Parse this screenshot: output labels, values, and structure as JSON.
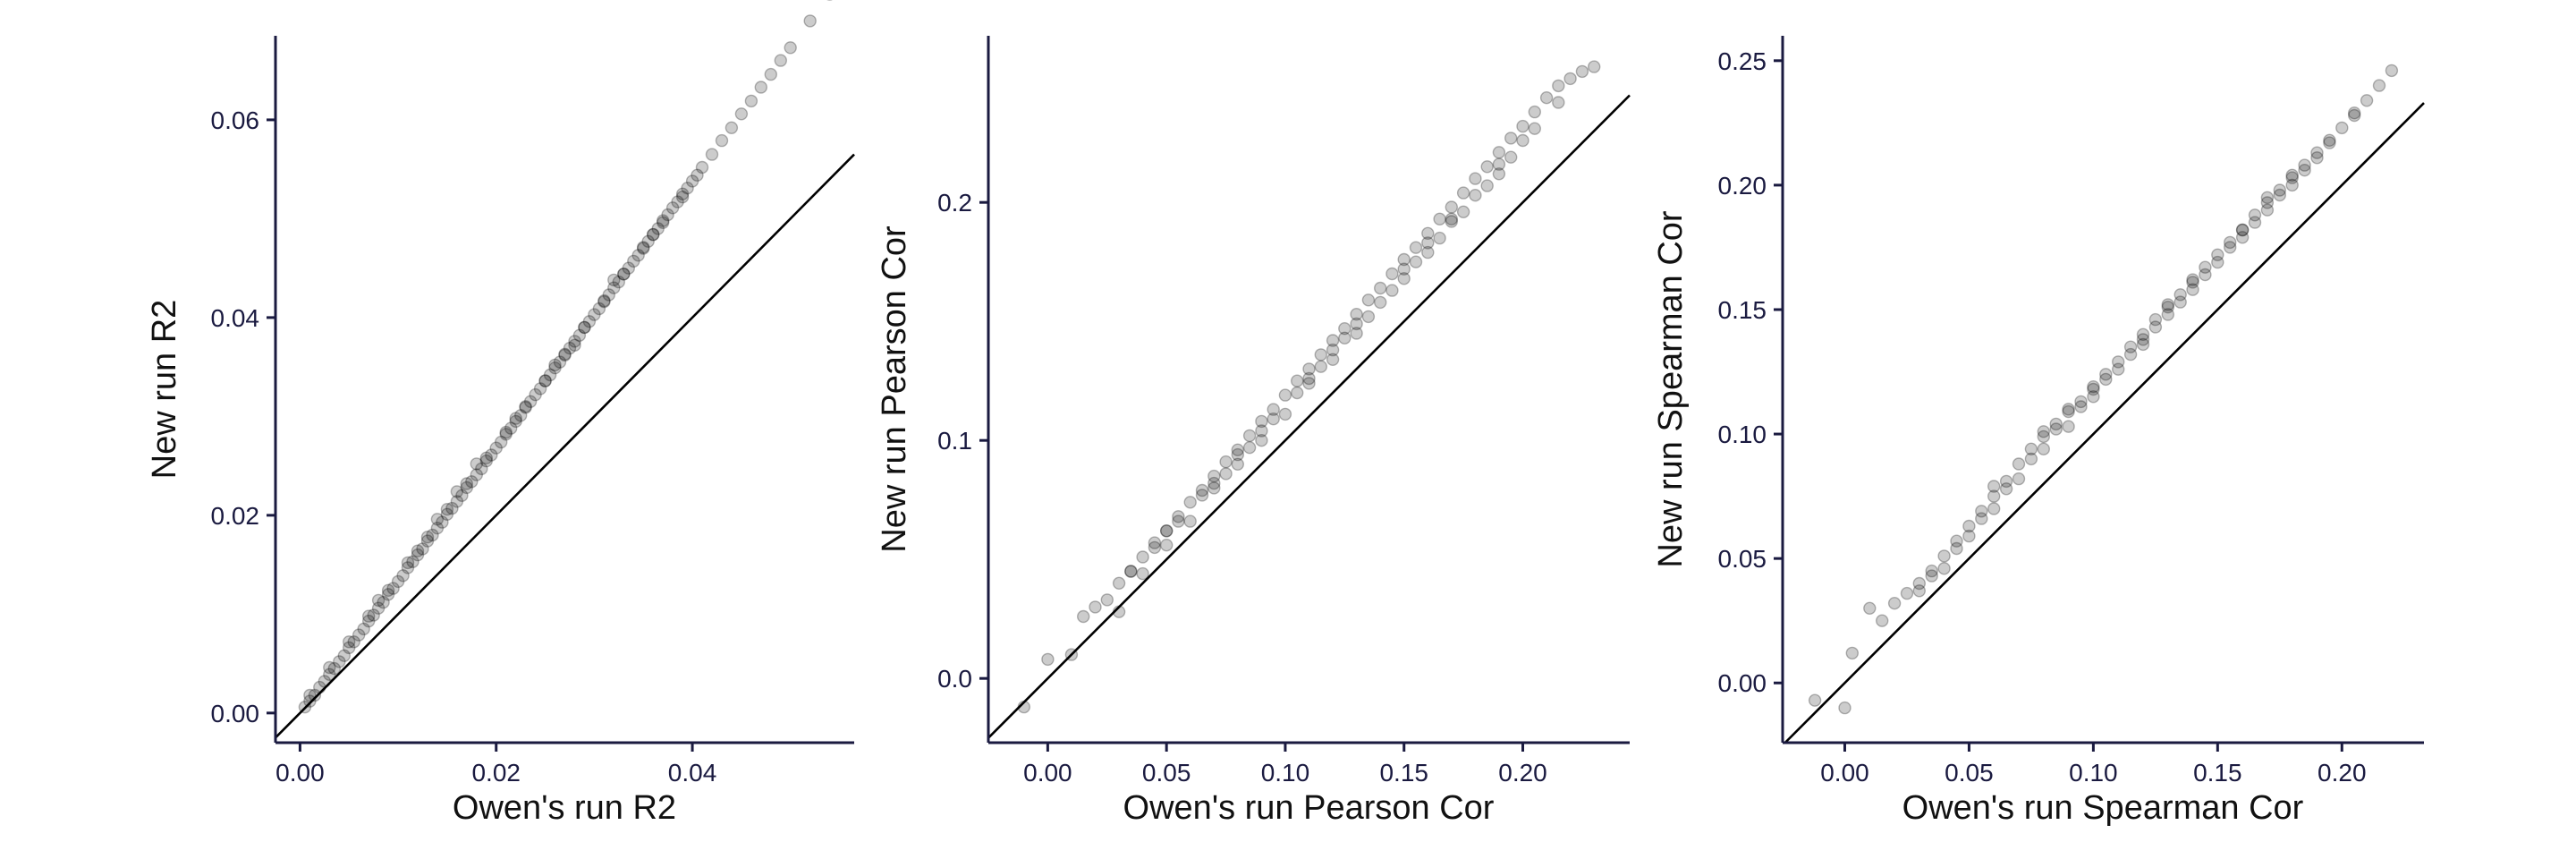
{
  "colors": {
    "axis": "#1a1a40",
    "points": "#000000",
    "background": "#ffffff"
  },
  "chart_data": [
    {
      "type": "scatter",
      "title": "",
      "xlabel": "Owen's run R2",
      "ylabel": "New run R2",
      "xlim": [
        -0.0025,
        0.0565
      ],
      "ylim": [
        -0.003,
        0.0685
      ],
      "xticks": [
        0.0,
        0.02,
        0.04
      ],
      "xtick_labels": [
        "0.00",
        "0.02",
        "0.04"
      ],
      "yticks": [
        0.0,
        0.02,
        0.04,
        0.06
      ],
      "ytick_labels": [
        "0.00",
        "0.02",
        "0.04",
        "0.06"
      ],
      "reference_line": "y = x",
      "grid": false,
      "series": [
        {
          "x": [
            0.0005,
            0.001,
            0.0015,
            0.002,
            0.0025,
            0.003,
            0.0035,
            0.004,
            0.0045,
            0.005,
            0.0055,
            0.006,
            0.0065,
            0.007,
            0.0075,
            0.008,
            0.0085,
            0.009,
            0.0095,
            0.01,
            0.0105,
            0.011,
            0.0115,
            0.012,
            0.0125,
            0.013,
            0.0135,
            0.014,
            0.0145,
            0.015,
            0.0155,
            0.016,
            0.0165,
            0.017,
            0.0175,
            0.018,
            0.0185,
            0.019,
            0.0195,
            0.02,
            0.0205,
            0.021,
            0.0215,
            0.022,
            0.0225,
            0.023,
            0.0235,
            0.024,
            0.0245,
            0.025,
            0.0255,
            0.026,
            0.0265,
            0.027,
            0.0275,
            0.028,
            0.0285,
            0.029,
            0.0295,
            0.03,
            0.0305,
            0.031,
            0.0315,
            0.032,
            0.0325,
            0.033,
            0.0335,
            0.034,
            0.0345,
            0.035,
            0.0355,
            0.036,
            0.0365,
            0.037,
            0.0375,
            0.038,
            0.0385,
            0.039,
            0.0395,
            0.04,
            0.0405,
            0.041,
            0.042,
            0.043,
            0.044,
            0.045,
            0.046,
            0.047,
            0.048,
            0.049,
            0.05,
            0.052,
            0.054,
            0.001,
            0.003,
            0.005,
            0.007,
            0.009,
            0.011,
            0.013,
            0.015,
            0.017,
            0.019,
            0.021,
            0.023,
            0.025,
            0.027,
            0.029,
            0.031,
            0.033,
            0.035,
            0.037,
            0.039,
            0.008,
            0.012,
            0.018,
            0.022,
            0.028,
            0.014,
            0.016,
            0.026,
            0.032,
            0.036
          ],
          "y": [
            0.0006,
            0.0012,
            0.0018,
            0.0026,
            0.0032,
            0.0039,
            0.0045,
            0.0052,
            0.0058,
            0.0066,
            0.0072,
            0.0079,
            0.0085,
            0.0093,
            0.0099,
            0.0106,
            0.0112,
            0.012,
            0.0126,
            0.0133,
            0.0139,
            0.0147,
            0.0153,
            0.016,
            0.0166,
            0.0174,
            0.018,
            0.0187,
            0.0193,
            0.0201,
            0.0207,
            0.0214,
            0.022,
            0.0228,
            0.0234,
            0.0241,
            0.0247,
            0.0255,
            0.0261,
            0.0268,
            0.0274,
            0.0282,
            0.0288,
            0.0295,
            0.0301,
            0.0309,
            0.0315,
            0.0322,
            0.0328,
            0.0336,
            0.0342,
            0.0349,
            0.0355,
            0.0363,
            0.0369,
            0.0376,
            0.0382,
            0.039,
            0.0396,
            0.0403,
            0.0409,
            0.0417,
            0.0423,
            0.043,
            0.0436,
            0.0444,
            0.045,
            0.0457,
            0.0463,
            0.0471,
            0.0477,
            0.0484,
            0.049,
            0.0498,
            0.0504,
            0.0511,
            0.0517,
            0.0525,
            0.0531,
            0.0538,
            0.0544,
            0.0552,
            0.0565,
            0.0579,
            0.0592,
            0.0606,
            0.0619,
            0.0633,
            0.0646,
            0.066,
            0.0673,
            0.07,
            0.0727,
            0.0018,
            0.0046,
            0.0072,
            0.0098,
            0.0124,
            0.0152,
            0.0178,
            0.0206,
            0.0232,
            0.0258,
            0.0284,
            0.031,
            0.0336,
            0.0362,
            0.039,
            0.0416,
            0.0444,
            0.047,
            0.0496,
            0.0522,
            0.0114,
            0.0164,
            0.0252,
            0.0298,
            0.0372,
            0.0196,
            0.0224,
            0.0352,
            0.0438,
            0.0484
          ]
        }
      ]
    },
    {
      "type": "scatter",
      "title": "",
      "xlabel": "Owen's run Pearson Cor",
      "ylabel": "New run Pearson Cor",
      "xlim": [
        -0.025,
        0.245
      ],
      "ylim": [
        -0.027,
        0.27
      ],
      "xticks": [
        0.0,
        0.05,
        0.1,
        0.15,
        0.2
      ],
      "xtick_labels": [
        "0.00",
        "0.05",
        "0.10",
        "0.15",
        "0.20"
      ],
      "yticks": [
        0.0,
        0.1,
        0.2
      ],
      "ytick_labels": [
        "0.0",
        "0.1",
        "0.2"
      ],
      "reference_line": "y = x",
      "grid": false,
      "series": [
        {
          "x": [
            -0.01,
            0.0,
            0.01,
            0.015,
            0.02,
            0.025,
            0.03,
            0.035,
            0.04,
            0.045,
            0.05,
            0.055,
            0.06,
            0.065,
            0.07,
            0.075,
            0.08,
            0.085,
            0.09,
            0.095,
            0.1,
            0.105,
            0.11,
            0.115,
            0.12,
            0.125,
            0.13,
            0.135,
            0.14,
            0.145,
            0.15,
            0.155,
            0.16,
            0.165,
            0.17,
            0.175,
            0.18,
            0.185,
            0.19,
            0.195,
            0.2,
            0.205,
            0.21,
            0.215,
            0.22,
            0.225,
            0.23,
            0.03,
            0.04,
            0.05,
            0.06,
            0.07,
            0.08,
            0.09,
            0.1,
            0.11,
            0.12,
            0.13,
            0.14,
            0.15,
            0.16,
            0.17,
            0.18,
            0.19,
            0.2,
            0.035,
            0.045,
            0.055,
            0.065,
            0.075,
            0.085,
            0.095,
            0.105,
            0.115,
            0.125,
            0.135,
            0.145,
            0.155,
            0.165,
            0.175,
            0.185,
            0.195,
            0.205,
            0.215,
            0.05,
            0.07,
            0.09,
            0.11,
            0.13,
            0.15,
            0.17,
            0.19,
            0.08,
            0.12,
            0.16
          ],
          "y": [
            -0.012,
            0.008,
            0.01,
            0.026,
            0.03,
            0.033,
            0.04,
            0.045,
            0.051,
            0.057,
            0.062,
            0.068,
            0.074,
            0.079,
            0.085,
            0.091,
            0.096,
            0.102,
            0.108,
            0.113,
            0.119,
            0.125,
            0.13,
            0.136,
            0.142,
            0.147,
            0.153,
            0.159,
            0.164,
            0.17,
            0.176,
            0.181,
            0.187,
            0.193,
            0.198,
            0.204,
            0.21,
            0.215,
            0.221,
            0.227,
            0.232,
            0.238,
            0.244,
            0.249,
            0.252,
            0.255,
            0.257,
            0.028,
            0.044,
            0.056,
            0.066,
            0.08,
            0.09,
            0.1,
            0.111,
            0.124,
            0.134,
            0.145,
            0.158,
            0.168,
            0.179,
            0.192,
            0.203,
            0.212,
            0.226,
            0.045,
            0.055,
            0.066,
            0.077,
            0.086,
            0.097,
            0.109,
            0.12,
            0.131,
            0.143,
            0.152,
            0.163,
            0.175,
            0.185,
            0.196,
            0.207,
            0.219,
            0.231,
            0.242,
            0.062,
            0.082,
            0.104,
            0.126,
            0.149,
            0.172,
            0.193,
            0.216,
            0.094,
            0.138,
            0.183
          ]
        }
      ]
    },
    {
      "type": "scatter",
      "title": "",
      "xlabel": "Owen's run Spearman Cor",
      "ylabel": "New run Spearman Cor",
      "xlim": [
        -0.025,
        0.233
      ],
      "ylim": [
        -0.024,
        0.26
      ],
      "xticks": [
        0.0,
        0.05,
        0.1,
        0.15,
        0.2
      ],
      "xtick_labels": [
        "0.00",
        "0.05",
        "0.10",
        "0.15",
        "0.20"
      ],
      "yticks": [
        0.0,
        0.05,
        0.1,
        0.15,
        0.2,
        0.25
      ],
      "ytick_labels": [
        "0.00",
        "0.05",
        "0.10",
        "0.15",
        "0.20",
        "0.25"
      ],
      "reference_line": "y = x",
      "grid": false,
      "series": [
        {
          "x": [
            -0.012,
            0.0,
            0.003,
            0.01,
            0.015,
            0.02,
            0.025,
            0.03,
            0.035,
            0.04,
            0.045,
            0.05,
            0.055,
            0.06,
            0.065,
            0.07,
            0.075,
            0.08,
            0.085,
            0.09,
            0.095,
            0.1,
            0.105,
            0.11,
            0.115,
            0.12,
            0.125,
            0.13,
            0.135,
            0.14,
            0.145,
            0.15,
            0.155,
            0.16,
            0.165,
            0.17,
            0.175,
            0.18,
            0.185,
            0.19,
            0.195,
            0.2,
            0.205,
            0.21,
            0.215,
            0.22,
            0.03,
            0.04,
            0.05,
            0.06,
            0.07,
            0.08,
            0.09,
            0.1,
            0.11,
            0.12,
            0.13,
            0.14,
            0.15,
            0.16,
            0.17,
            0.18,
            0.19,
            0.035,
            0.045,
            0.055,
            0.065,
            0.075,
            0.085,
            0.095,
            0.105,
            0.115,
            0.125,
            0.135,
            0.145,
            0.155,
            0.165,
            0.175,
            0.185,
            0.195,
            0.205,
            0.06,
            0.08,
            0.1,
            0.12,
            0.14,
            0.16,
            0.18,
            0.09,
            0.13,
            0.17
          ],
          "y": [
            -0.007,
            -0.01,
            0.012,
            0.03,
            0.025,
            0.032,
            0.036,
            0.04,
            0.045,
            0.051,
            0.057,
            0.063,
            0.069,
            0.075,
            0.081,
            0.088,
            0.094,
            0.099,
            0.104,
            0.109,
            0.113,
            0.119,
            0.124,
            0.129,
            0.135,
            0.14,
            0.146,
            0.151,
            0.156,
            0.162,
            0.167,
            0.172,
            0.177,
            0.182,
            0.188,
            0.193,
            0.198,
            0.203,
            0.208,
            0.213,
            0.218,
            0.223,
            0.229,
            0.234,
            0.24,
            0.246,
            0.037,
            0.046,
            0.059,
            0.07,
            0.082,
            0.094,
            0.103,
            0.115,
            0.126,
            0.136,
            0.148,
            0.158,
            0.169,
            0.179,
            0.19,
            0.2,
            0.211,
            0.043,
            0.054,
            0.066,
            0.078,
            0.09,
            0.102,
            0.111,
            0.122,
            0.132,
            0.143,
            0.153,
            0.164,
            0.175,
            0.185,
            0.196,
            0.206,
            0.217,
            0.228,
            0.079,
            0.101,
            0.118,
            0.138,
            0.161,
            0.182,
            0.204,
            0.11,
            0.152,
            0.195
          ]
        }
      ]
    }
  ]
}
